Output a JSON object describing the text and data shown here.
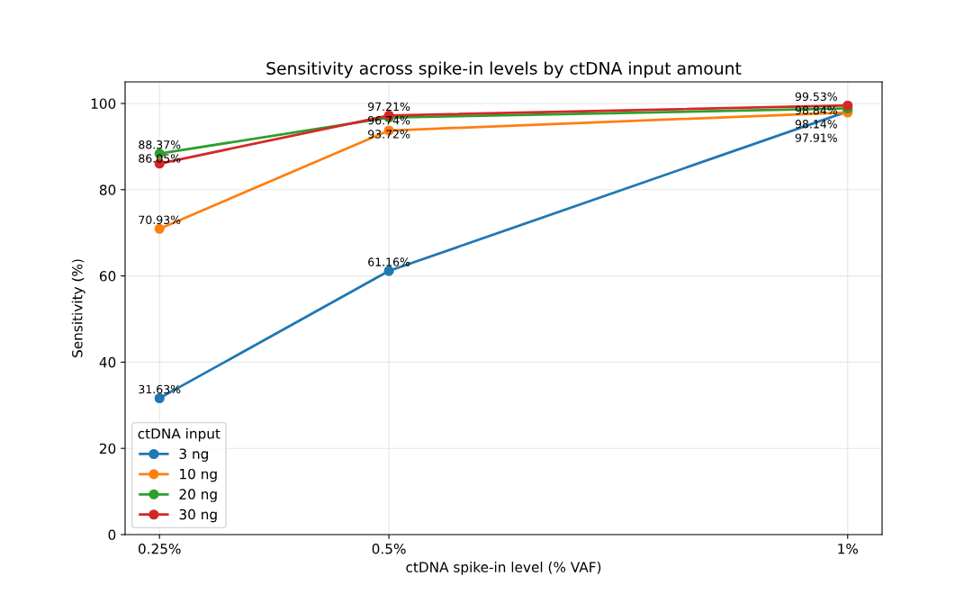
{
  "chart_data": {
    "type": "line",
    "title": "Sensitivity across spike-in levels by ctDNA input amount",
    "xlabel": "ctDNA spike-in level (% VAF)",
    "ylabel": "Sensitivity (%)",
    "legend_title": "ctDNA input",
    "x": [
      0.25,
      0.5,
      1
    ],
    "xlim": [
      0.2125,
      1.0375
    ],
    "xticks": [
      {
        "value": 0.25,
        "label": "0.25%"
      },
      {
        "value": 0.5,
        "label": "0.5%"
      },
      {
        "value": 1,
        "label": "1%"
      }
    ],
    "ylim": [
      0,
      105
    ],
    "yticks": [
      0,
      20,
      40,
      60,
      80,
      100
    ],
    "series": [
      {
        "name": "3 ng",
        "color": "#1f77b4",
        "values": [
          31.63,
          61.16,
          98.14
        ],
        "value_labels": [
          "31.63%",
          "61.16%",
          "98.14%"
        ]
      },
      {
        "name": "10 ng",
        "color": "#ff7f0e",
        "values": [
          70.93,
          93.72,
          97.91
        ],
        "value_labels": [
          "70.93%",
          "93.72%",
          "97.91%"
        ]
      },
      {
        "name": "20 ng",
        "color": "#2ca02c",
        "values": [
          88.37,
          96.74,
          98.84
        ],
        "value_labels": [
          "88.37%",
          "96.74%",
          "98.84%"
        ]
      },
      {
        "name": "30 ng",
        "color": "#d62728",
        "values": [
          86.05,
          97.21,
          99.53
        ],
        "value_labels": [
          "86.05%",
          "97.21%",
          "99.53%"
        ]
      }
    ],
    "marker": "circle",
    "line_style": "solid",
    "grid": true,
    "legend": "bottom left"
  }
}
